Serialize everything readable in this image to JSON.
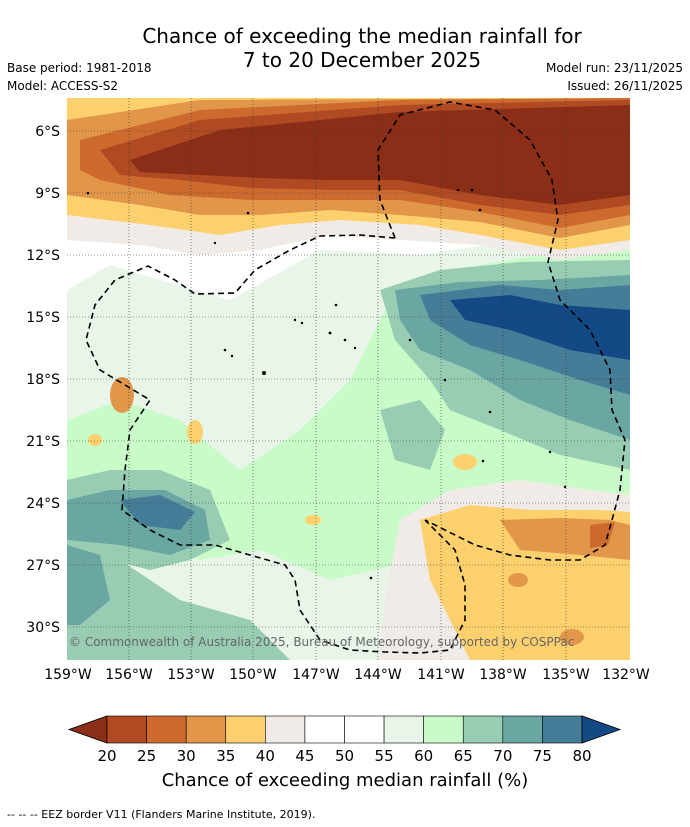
{
  "title": {
    "line1": "Chance of exceeding the median rainfall for",
    "line2": "7 to 20 December 2025"
  },
  "meta": {
    "base_period": "Base period: 1981-2018",
    "model": "Model: ACCESS-S2",
    "model_run": "Model run: 23/11/2025",
    "issued": "Issued: 26/11/2025"
  },
  "map": {
    "lat_labels": [
      "6°S",
      "9°S",
      "12°S",
      "15°S",
      "18°S",
      "21°S",
      "24°S",
      "27°S",
      "30°S"
    ],
    "lon_labels": [
      "159°W",
      "156°W",
      "153°W",
      "150°W",
      "147°W",
      "144°W",
      "141°W",
      "138°W",
      "135°W",
      "132°W"
    ],
    "credit": "© Commonwealth of Australia 2025, Bureau of Meteorology, supported by COSPPac"
  },
  "colorbar": {
    "ticks": [
      "20",
      "25",
      "30",
      "35",
      "40",
      "45",
      "50",
      "55",
      "60",
      "65",
      "70",
      "75",
      "80"
    ],
    "colors": [
      "#8b2e17",
      "#b04a22",
      "#cd6b2f",
      "#e2964a",
      "#fdd06e",
      "#f0ebe6",
      "#ffffff",
      "#ffffff",
      "#e8f5e8",
      "#c9fbc9",
      "#98cdb4",
      "#6aa6a2",
      "#457d98",
      "#134a85"
    ],
    "title": "Chance of exceeding median rainfall (%)"
  },
  "footnote": "--  --  -- EEZ border V11 (Flanders Marine Institute, 2019)."
}
